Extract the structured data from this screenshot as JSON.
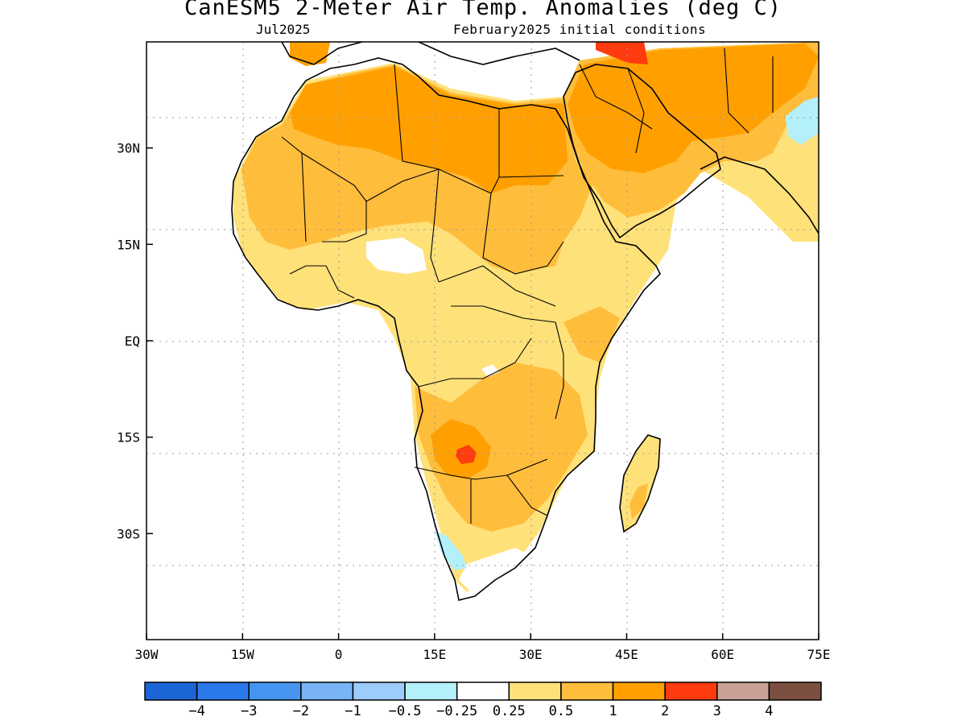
{
  "title": "CanESM5 2-Meter Air Temp. Anomalies (deg C)",
  "subtitle_left": "Jul2025",
  "subtitle_right": "February2025 initial conditions",
  "map": {
    "lon_range": [
      -30,
      75
    ],
    "lat_range": [
      -46.5,
      46.5
    ],
    "x_ticks": [
      {
        "value": -30,
        "label": "30W"
      },
      {
        "value": -15,
        "label": "15W"
      },
      {
        "value": 0,
        "label": "0"
      },
      {
        "value": 15,
        "label": "15E"
      },
      {
        "value": 30,
        "label": "30E"
      },
      {
        "value": 45,
        "label": "45E"
      },
      {
        "value": 60,
        "label": "60E"
      },
      {
        "value": 75,
        "label": "75E"
      }
    ],
    "y_ticks": [
      {
        "value": 30,
        "label": "30N"
      },
      {
        "value": 15,
        "label": "15N"
      },
      {
        "value": 0,
        "label": "EQ"
      },
      {
        "value": -15,
        "label": "15S"
      },
      {
        "value": -30,
        "label": "30S"
      }
    ],
    "grid": "dotted"
  },
  "colorbar": {
    "colors": [
      "#1a66d6",
      "#2b78ea",
      "#4595f0",
      "#78b4f6",
      "#9cccf9",
      "#b4f0fa",
      "#ffffff",
      "#ffe17a",
      "#ffbd3c",
      "#ffa000",
      "#ff3b10",
      "#c9a196",
      "#7d4f40"
    ],
    "labels": [
      "-4",
      "-3",
      "-2",
      "-1",
      "-0.5",
      "-0.25",
      "0.25",
      "0.5",
      "1",
      "2",
      "3",
      "4"
    ]
  }
}
